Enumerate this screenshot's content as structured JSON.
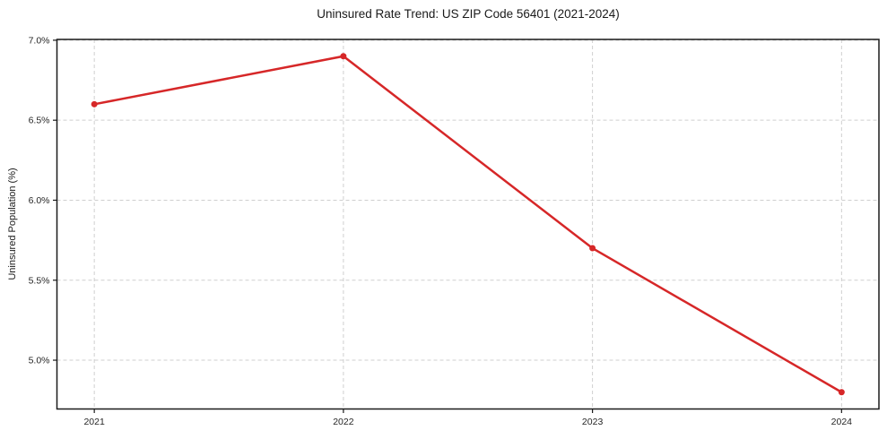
{
  "chart_data": {
    "type": "line",
    "title": "Uninsured Rate Trend: US ZIP Code 56401 (2021-2024)",
    "xlabel": "",
    "ylabel": "Uninsured Population (%)",
    "x": [
      2021,
      2022,
      2023,
      2024
    ],
    "x_tick_labels": [
      "2021",
      "2022",
      "2023",
      "2024"
    ],
    "series": [
      {
        "values": [
          6.6,
          6.9,
          5.7,
          4.8
        ]
      }
    ],
    "y_ticks": [
      5.0,
      5.5,
      6.0,
      6.5,
      7.0
    ],
    "y_tick_labels": [
      "5.0%",
      "5.5%",
      "6.0%",
      "6.5%",
      "7.0%"
    ],
    "xlim": [
      2020.85,
      2024.15
    ],
    "ylim": [
      4.695,
      7.005
    ],
    "grid": true,
    "grid_style": "dashed",
    "legend": "none",
    "colors": {
      "line": "#d62728",
      "marker": "#d62728",
      "grid": "#cfcfcf",
      "spine": "#1a1a1a",
      "text": "#262626"
    }
  }
}
